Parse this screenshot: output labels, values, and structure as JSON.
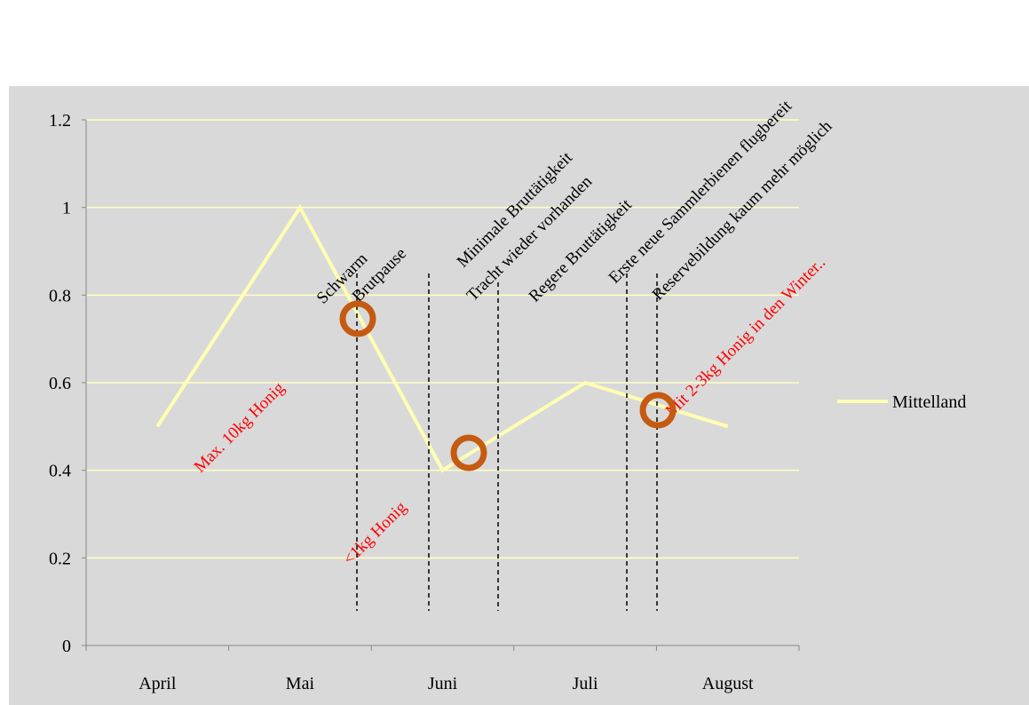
{
  "chart_data": {
    "type": "line",
    "categories": [
      "April",
      "Mai",
      "Juni",
      "Juli",
      "August"
    ],
    "series": [
      {
        "name": "Mittelland",
        "color": "#ffffb3",
        "values": [
          0.5,
          1,
          0.4,
          0.6,
          0.5
        ]
      }
    ],
    "ylim": [
      0,
      1.2
    ],
    "yticks": [
      0,
      0.2,
      0.4,
      0.6,
      0.8,
      1,
      1.2
    ],
    "grid": true,
    "legend": "right",
    "annotations": [
      "Schwarm",
      "Brutpause",
      "Minimale  Bruttätigkeit",
      "Tracht wieder vorhanden",
      "Regere Bruttätigkeit",
      "Erste neue Sammlerbienen  flugbereit",
      "Reservebildung kaum mehr möglich",
      "Max. 10kg Honig",
      "<1kg Honig",
      "Mit 2-3kg Honig in den Winter.."
    ]
  }
}
